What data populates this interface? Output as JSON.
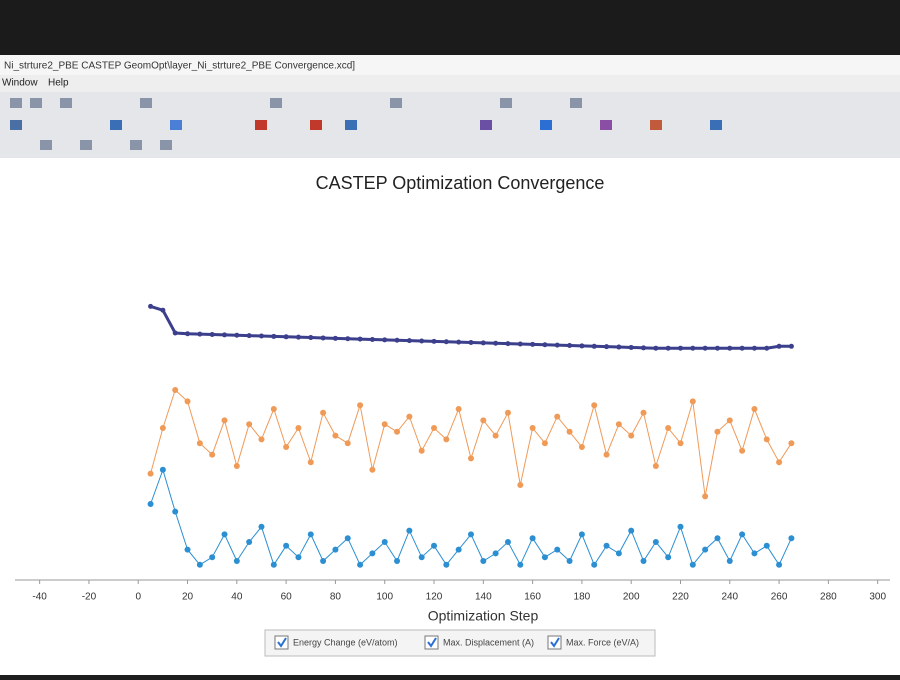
{
  "window": {
    "title": "Ni_strture2_PBE CASTEP GeomOpt\\layer_Ni_strture2_PBE Convergence.xcd]",
    "menu": [
      "Window",
      "Help"
    ]
  },
  "chart_data": {
    "type": "line",
    "title": "CASTEP Optimization Convergence",
    "x_label": "Optimization Step",
    "x": [
      5,
      10,
      15,
      20,
      25,
      30,
      35,
      40,
      45,
      50,
      55,
      60,
      65,
      70,
      75,
      80,
      85,
      90,
      95,
      100,
      105,
      110,
      115,
      120,
      125,
      130,
      135,
      140,
      145,
      150,
      155,
      160,
      165,
      170,
      175,
      180,
      185,
      190,
      195,
      200,
      205,
      210,
      215,
      220,
      225,
      230,
      235,
      240,
      245,
      250,
      255,
      260,
      265
    ],
    "xlim": [
      -50,
      305
    ],
    "xticks": [
      -40,
      -20,
      0,
      20,
      40,
      60,
      80,
      100,
      120,
      140,
      160,
      180,
      200,
      220,
      240,
      260,
      280,
      300
    ],
    "ylim": [
      0,
      100
    ],
    "series": [
      {
        "name": "Energy Change (eV/atom)",
        "color": "#3b3f8c",
        "values": [
          72,
          71,
          65,
          64.8,
          64.7,
          64.6,
          64.5,
          64.4,
          64.3,
          64.2,
          64.1,
          64,
          63.9,
          63.8,
          63.7,
          63.6,
          63.5,
          63.4,
          63.3,
          63.2,
          63.1,
          63,
          62.9,
          62.8,
          62.7,
          62.6,
          62.5,
          62.4,
          62.3,
          62.2,
          62.1,
          62,
          61.9,
          61.8,
          61.7,
          61.6,
          61.5,
          61.4,
          61.3,
          61.2,
          61.1,
          61,
          61,
          61,
          61,
          61,
          61,
          61,
          61,
          61,
          61,
          61.5,
          61.5
        ]
      },
      {
        "name": "Max. Displacement (A)",
        "color": "#f09a58",
        "values": [
          28,
          40,
          50,
          47,
          36,
          33,
          42,
          30,
          41,
          37,
          45,
          35,
          40,
          31,
          44,
          38,
          36,
          46,
          29,
          41,
          39,
          43,
          34,
          40,
          37,
          45,
          32,
          42,
          38,
          44,
          25,
          40,
          36,
          43,
          39,
          35,
          46,
          33,
          41,
          38,
          44,
          30,
          40,
          36,
          47,
          22,
          39,
          42,
          34,
          45,
          37,
          31,
          36
        ]
      },
      {
        "name": "Max. Force (eV/A)",
        "color": "#2b8fd2",
        "values": [
          20,
          29,
          18,
          8,
          4,
          6,
          12,
          5,
          10,
          14,
          4,
          9,
          6,
          12,
          5,
          8,
          11,
          4,
          7,
          10,
          5,
          13,
          6,
          9,
          4,
          8,
          12,
          5,
          7,
          10,
          4,
          11,
          6,
          8,
          5,
          12,
          4,
          9,
          7,
          13,
          5,
          10,
          6,
          14,
          4,
          8,
          11,
          5,
          12,
          7,
          9,
          4,
          11
        ]
      }
    ]
  }
}
